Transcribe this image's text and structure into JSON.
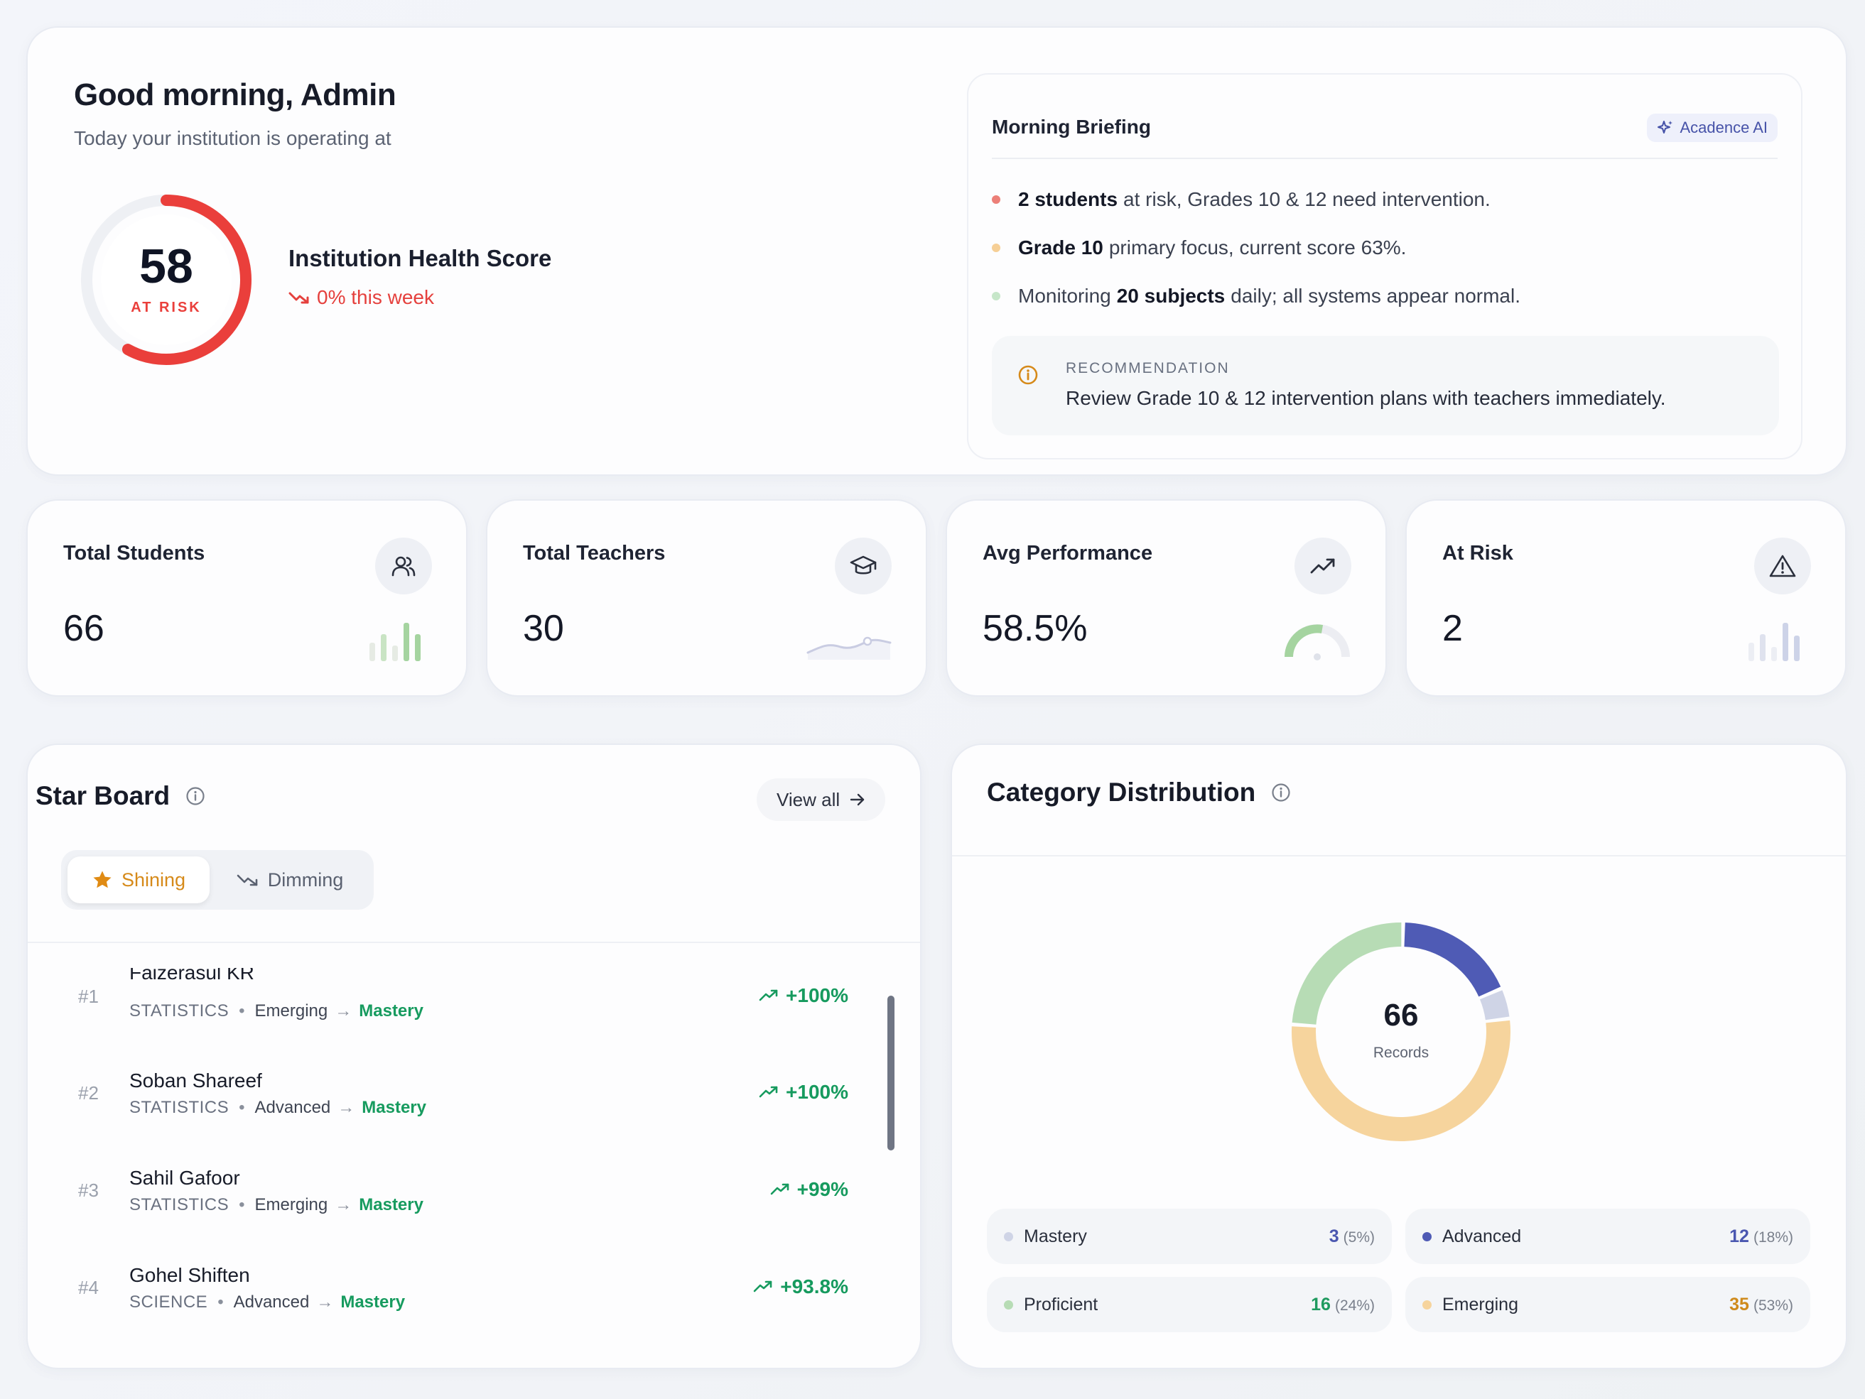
{
  "hero": {
    "greeting": "Good morning, Admin",
    "subtitle": "Today your institution is operating at",
    "health_score": "58",
    "health_status": "AT RISK",
    "health_score_value": 58,
    "health_title": "Institution Health Score",
    "health_trend": "0% this week",
    "colors": {
      "risk": "#ea3f3b",
      "track": "#eef0f4"
    }
  },
  "briefing": {
    "title": "Morning Briefing",
    "ai_badge": "Acadence AI",
    "bullets": [
      {
        "bold": "2 students",
        "text": "at risk, Grades 10 & 12 need intervention.",
        "color": "#ec7f78"
      },
      {
        "bold": "Grade 10",
        "text": "primary focus, current score 63%.",
        "color": "#f6cf96"
      },
      {
        "pre": "Monitoring",
        "bold": "20 subjects",
        "text": "daily; all systems appear normal.",
        "color": "#c6e6c9"
      }
    ],
    "recommendation_label": "RECOMMENDATION",
    "recommendation_text": "Review Grade 10 & 12 intervention plans with teachers immediately."
  },
  "stats": [
    {
      "title": "Total Students",
      "value": "66",
      "icon": "users-icon"
    },
    {
      "title": "Total Teachers",
      "value": "30",
      "icon": "graduation-cap-icon"
    },
    {
      "title": "Avg Performance",
      "value": "58.5%",
      "icon": "trending-up-icon"
    },
    {
      "title": "At Risk",
      "value": "2",
      "icon": "alert-triangle-icon"
    }
  ],
  "starboard": {
    "title": "Star Board",
    "view_all": "View all",
    "tabs": {
      "active": "Shining",
      "inactive": "Dimming"
    },
    "rows": [
      {
        "rank": "#1",
        "name": "Faizerasul KR",
        "subject": "STATISTICS",
        "from": "Emerging",
        "to": "Mastery",
        "delta": "+100%"
      },
      {
        "rank": "#2",
        "name": "Soban Shareef",
        "subject": "STATISTICS",
        "from": "Advanced",
        "to": "Mastery",
        "delta": "+100%"
      },
      {
        "rank": "#3",
        "name": "Sahil Gafoor",
        "subject": "STATISTICS",
        "from": "Emerging",
        "to": "Mastery",
        "delta": "+99%"
      },
      {
        "rank": "#4",
        "name": "Gohel Shiften",
        "subject": "SCIENCE",
        "from": "Advanced",
        "to": "Mastery",
        "delta": "+93.8%"
      }
    ]
  },
  "category": {
    "title": "Category Distribution",
    "total": "66",
    "total_label": "Records",
    "items": [
      {
        "name": "Mastery",
        "count": "3",
        "pct": "(5%)",
        "color": "#cfd4e6",
        "value_color": "#4a57b0"
      },
      {
        "name": "Advanced",
        "count": "12",
        "pct": "(18%)",
        "color": "#4f5bb5",
        "value_color": "#4a57b0"
      },
      {
        "name": "Proficient",
        "count": "16",
        "pct": "(24%)",
        "color": "#b7dcb5",
        "value_color": "#1f9a5f"
      },
      {
        "name": "Emerging",
        "count": "35",
        "pct": "(53%)",
        "color": "#f6d49d",
        "value_color": "#cf8a1c"
      }
    ]
  }
}
